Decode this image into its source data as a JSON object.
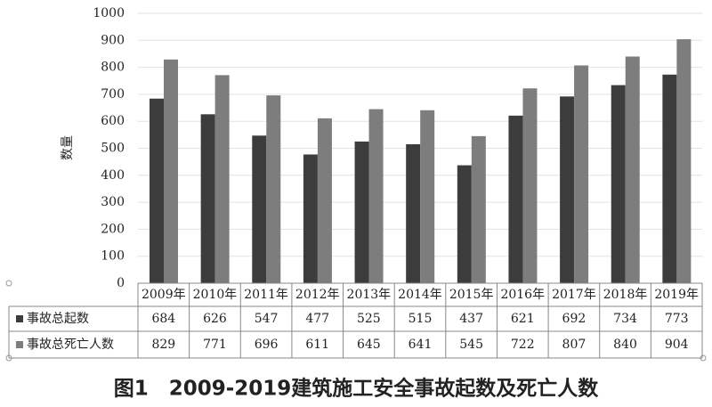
{
  "chart_data": {
    "type": "bar",
    "title": "图1　2009-2019建筑施工安全事故起数及死亡人数",
    "y_label": "数量",
    "categories": [
      "2009年",
      "2010年",
      "2011年",
      "2012年",
      "2013年",
      "2014年",
      "2015年",
      "2016年",
      "2017年",
      "2018年",
      "2019年"
    ],
    "series": [
      {
        "name": "事故总起数",
        "color": "#3c3c3c",
        "values": [
          684,
          626,
          547,
          477,
          525,
          515,
          437,
          621,
          692,
          734,
          773
        ]
      },
      {
        "name": "事故总死亡人数",
        "color": "#7d7d7d",
        "values": [
          829,
          771,
          696,
          611,
          645,
          641,
          545,
          722,
          807,
          840,
          904
        ]
      }
    ],
    "ylim": [
      0,
      1000
    ],
    "yticks": [
      0,
      100,
      200,
      300,
      400,
      500,
      600,
      700,
      800,
      900,
      1000
    ],
    "grid": true
  }
}
